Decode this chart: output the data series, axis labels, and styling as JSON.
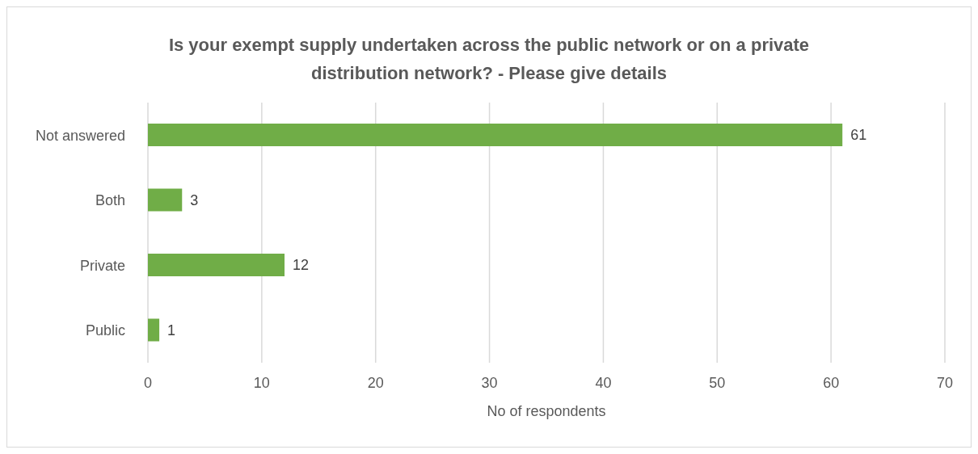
{
  "chart_data": {
    "type": "bar",
    "orientation": "horizontal",
    "title": "Is your exempt supply undertaken across the public network or on a private distribution network? - Please give details",
    "xlabel": "No of respondents",
    "categories": [
      "Not answered",
      "Both",
      "Private",
      "Public"
    ],
    "values": [
      61,
      3,
      12,
      1
    ],
    "color": "#70ad47",
    "xlim": [
      0,
      70
    ],
    "xticks": [
      0,
      10,
      20,
      30,
      40,
      50,
      60,
      70
    ],
    "grid": "x",
    "data_labels": true
  }
}
